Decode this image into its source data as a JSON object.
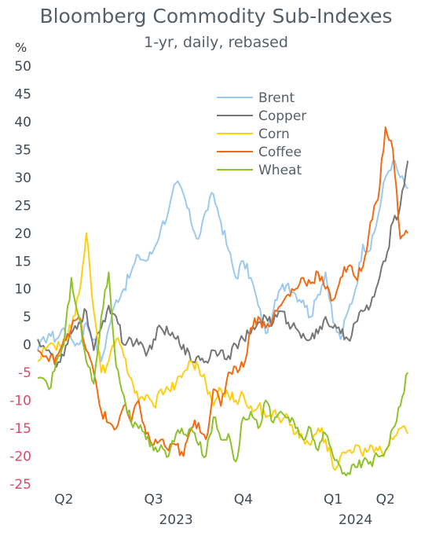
{
  "header": {
    "title": "Bloomberg Commodity Sub-Indexes",
    "subtitle": "1-yr, daily, rebased",
    "unit": "%"
  },
  "colors": {
    "positive_tick": "#3f4a54",
    "negative_tick": "#e0466a"
  },
  "chart_data": {
    "type": "line",
    "title": "Bloomberg Commodity Sub-Indexes",
    "subtitle": "1-yr, daily, rebased",
    "ylabel": "%",
    "ylim": [
      -25,
      50
    ],
    "yticks": [
      50,
      45,
      40,
      35,
      30,
      25,
      20,
      15,
      10,
      5,
      0,
      -5,
      -10,
      -15,
      -20,
      -25
    ],
    "xlim": [
      0,
      100
    ],
    "x_ticks": [
      {
        "label": "Q2",
        "x": 7
      },
      {
        "label": "Q3",
        "x": 31
      },
      {
        "label": "Q4",
        "x": 55
      },
      {
        "label": "Q1",
        "x": 79
      },
      {
        "label": "Q2",
        "x": 93
      }
    ],
    "x_years": [
      {
        "label": "2023",
        "x": 37
      },
      {
        "label": "2024",
        "x": 85
      }
    ],
    "grid": false,
    "legend_position": "top-right",
    "series": [
      {
        "name": "Brent",
        "color": "#9cc9ef",
        "x": [
          0,
          3,
          5,
          7,
          9,
          11,
          13,
          15,
          17,
          19,
          21,
          23,
          25,
          27,
          29,
          31,
          33,
          35,
          37,
          39,
          41,
          43,
          45,
          47,
          49,
          51,
          53,
          55,
          57,
          59,
          61,
          63,
          65,
          67,
          69,
          71,
          73,
          75,
          77,
          79,
          81,
          83,
          85,
          87,
          89,
          91,
          93,
          95,
          97,
          99
        ],
        "y": [
          -1,
          2,
          1,
          3,
          1,
          0,
          4,
          1,
          -3,
          3,
          8,
          10,
          13,
          16,
          15,
          17,
          21,
          24,
          29,
          27,
          22,
          19,
          24,
          27,
          22,
          17,
          12,
          15,
          12,
          7,
          2,
          6,
          10,
          11,
          9,
          8,
          5,
          9,
          13,
          4,
          1,
          6,
          10,
          18,
          17,
          23,
          30,
          33,
          30,
          28
        ]
      },
      {
        "name": "Copper",
        "color": "#767676",
        "x": [
          0,
          3,
          5,
          7,
          9,
          11,
          13,
          15,
          17,
          19,
          21,
          23,
          25,
          27,
          29,
          31,
          33,
          35,
          37,
          39,
          41,
          43,
          45,
          47,
          49,
          51,
          53,
          55,
          57,
          59,
          61,
          63,
          65,
          67,
          69,
          71,
          73,
          75,
          77,
          79,
          81,
          83,
          85,
          87,
          89,
          91,
          93,
          95,
          97,
          99
        ],
        "y": [
          1,
          -1,
          -4,
          -2,
          2,
          4,
          6,
          -1,
          3,
          7,
          5,
          0,
          1,
          0,
          -2,
          1,
          3,
          2,
          1,
          0,
          -3,
          -2,
          -3,
          -1,
          -1,
          -2,
          0,
          1,
          2,
          4,
          5,
          4,
          6,
          4,
          3,
          2,
          1,
          2,
          5,
          3,
          2,
          1,
          4,
          6,
          7,
          11,
          15,
          22,
          25,
          33
        ]
      },
      {
        "name": "Corn",
        "color": "#ffcf12",
        "x": [
          0,
          3,
          5,
          7,
          9,
          11,
          13,
          15,
          17,
          19,
          21,
          23,
          25,
          27,
          29,
          31,
          33,
          35,
          37,
          39,
          41,
          43,
          45,
          47,
          49,
          51,
          53,
          55,
          57,
          59,
          61,
          63,
          65,
          67,
          69,
          71,
          73,
          75,
          77,
          79,
          81,
          83,
          85,
          87,
          89,
          91,
          93,
          95,
          97,
          99
        ],
        "y": [
          -3,
          0,
          -1,
          1,
          3,
          9,
          20,
          6,
          -5,
          -3,
          1,
          -2,
          -6,
          -10,
          -9,
          -11,
          -8,
          -8,
          -7,
          -5,
          -3,
          -4,
          -7,
          -11,
          -8,
          -9,
          -10,
          -9,
          -11,
          -11,
          -13,
          -12,
          -14,
          -13,
          -16,
          -17,
          -18,
          -15,
          -17,
          -22,
          -20,
          -19,
          -18,
          -20,
          -18,
          -19,
          -19,
          -17,
          -15,
          -16
        ]
      },
      {
        "name": "Coffee",
        "color": "#f26a12",
        "x": [
          0,
          3,
          5,
          7,
          9,
          11,
          13,
          15,
          17,
          19,
          21,
          23,
          25,
          27,
          29,
          31,
          33,
          35,
          37,
          39,
          41,
          43,
          45,
          47,
          49,
          51,
          53,
          55,
          57,
          59,
          61,
          63,
          65,
          67,
          69,
          71,
          73,
          75,
          77,
          79,
          81,
          83,
          85,
          87,
          89,
          91,
          93,
          95,
          97,
          99
        ],
        "y": [
          -1,
          -3,
          -2,
          1,
          3,
          5,
          -1,
          -5,
          -12,
          -14,
          -15,
          -11,
          -14,
          -10,
          -16,
          -18,
          -17,
          -19,
          -18,
          -20,
          -15,
          -14,
          -17,
          -8,
          -11,
          -5,
          -4,
          -4,
          3,
          5,
          3,
          5,
          7,
          9,
          10,
          12,
          11,
          13,
          10,
          8,
          12,
          14,
          12,
          14,
          22,
          26,
          39,
          35,
          19,
          20
        ]
      },
      {
        "name": "Wheat",
        "color": "#8cc22a",
        "x": [
          0,
          3,
          5,
          7,
          9,
          11,
          13,
          15,
          17,
          19,
          21,
          23,
          25,
          27,
          29,
          31,
          33,
          35,
          37,
          39,
          41,
          43,
          45,
          47,
          49,
          51,
          53,
          55,
          57,
          59,
          61,
          63,
          65,
          67,
          69,
          71,
          73,
          75,
          77,
          79,
          81,
          83,
          85,
          87,
          89,
          91,
          93,
          95,
          97,
          99
        ],
        "y": [
          -6,
          -8,
          -3,
          0,
          12,
          5,
          -3,
          -7,
          5,
          13,
          -4,
          -9,
          -14,
          -15,
          -17,
          -19,
          -18,
          -20,
          -16,
          -16,
          -15,
          -18,
          -20,
          -13,
          -17,
          -16,
          -21,
          -13,
          -12,
          -15,
          -10,
          -14,
          -12,
          -13,
          -15,
          -17,
          -15,
          -19,
          -16,
          -20,
          -22,
          -23,
          -22,
          -21,
          -21,
          -20,
          -19,
          -15,
          -11,
          -5
        ]
      }
    ]
  }
}
